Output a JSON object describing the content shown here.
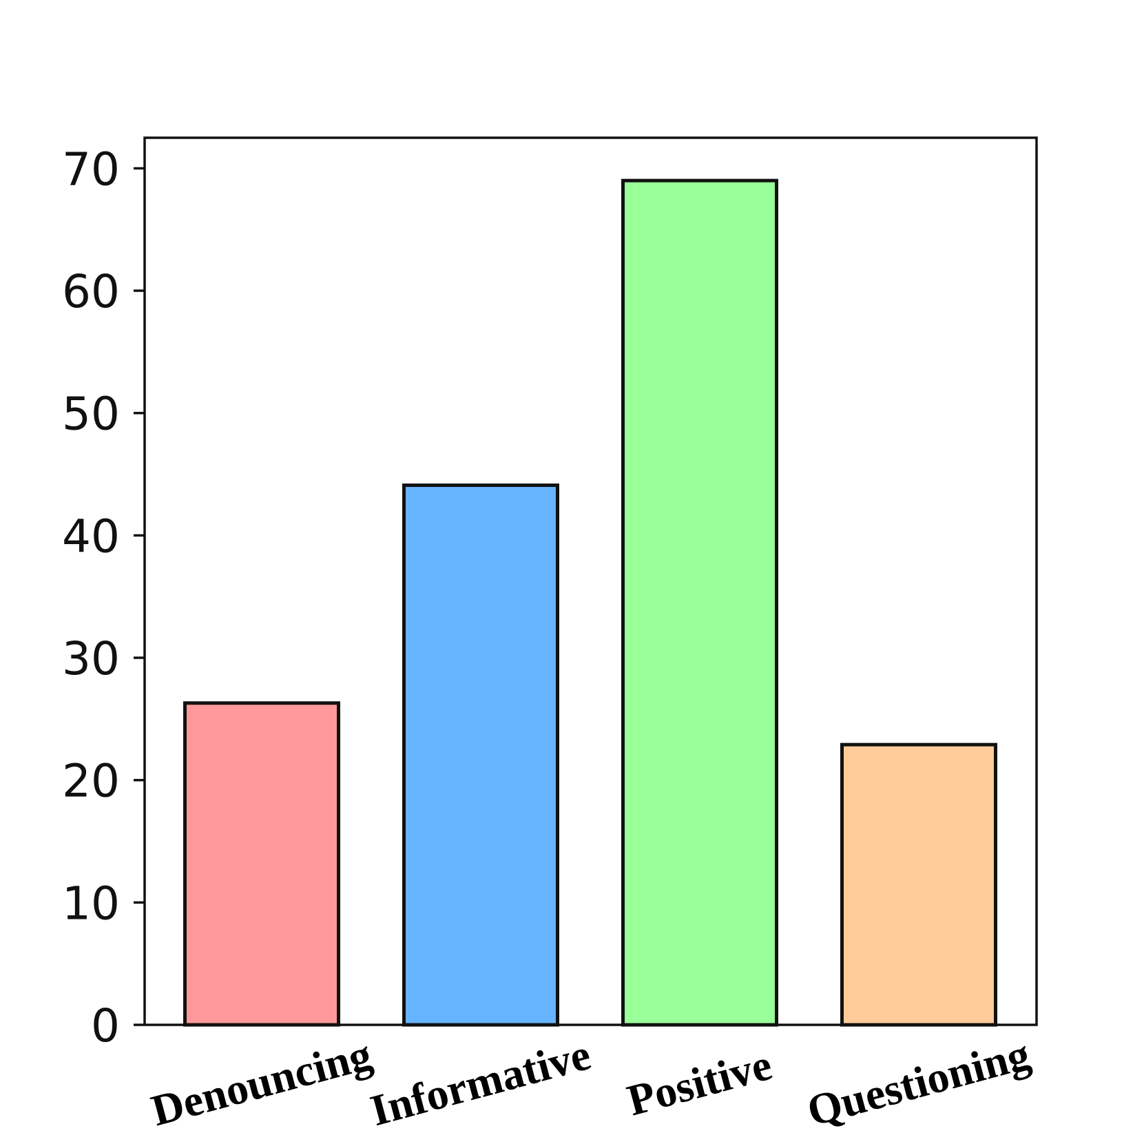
{
  "chart_data": {
    "type": "bar",
    "categories": [
      "Denouncing",
      "Informative",
      "Positive",
      "Questioning"
    ],
    "values": [
      26.3,
      44.1,
      69.0,
      22.9
    ],
    "colors": [
      "#ff9999",
      "#66b3ff",
      "#99ff99",
      "#ffcc99"
    ],
    "edge_color": "#111111",
    "title": "",
    "xlabel": "",
    "ylabel": "",
    "ylim": [
      0,
      72.5
    ],
    "yticks": [
      0,
      10,
      20,
      30,
      40,
      50,
      60,
      70
    ],
    "xtick_rotation": -15,
    "grid": false,
    "legend": "none"
  }
}
